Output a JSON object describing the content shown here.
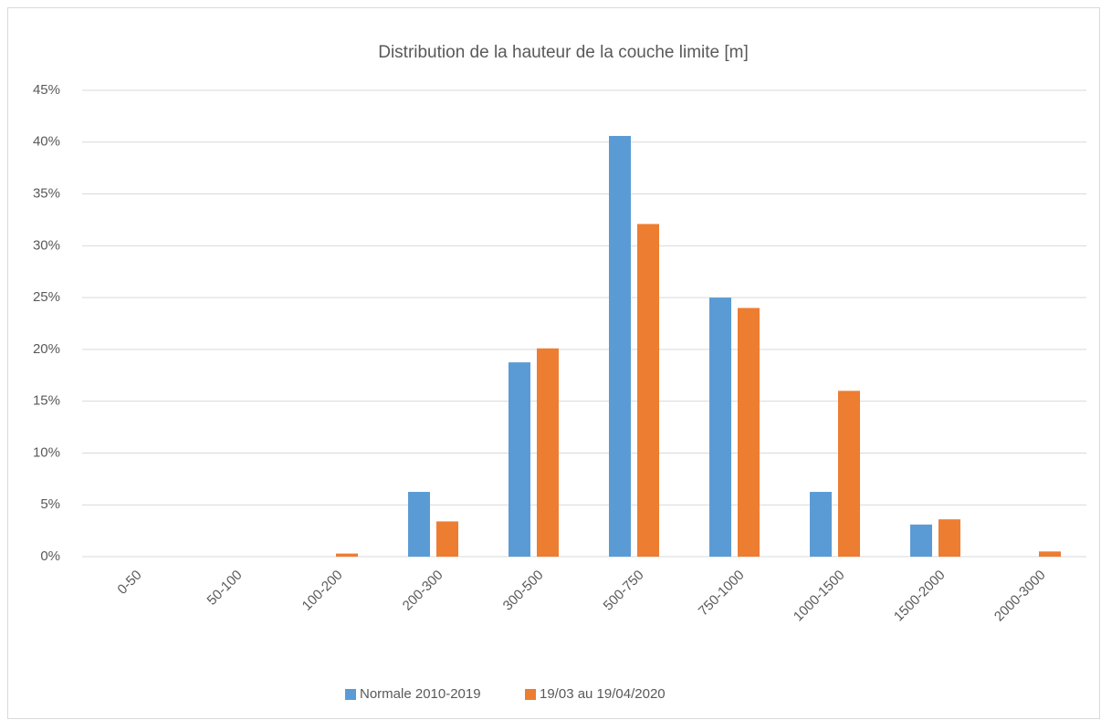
{
  "chart_data": {
    "type": "bar",
    "title": "Distribution de la hauteur de la couche limite [m]",
    "categories": [
      "0-50",
      "50-100",
      "100-200",
      "200-300",
      "300-500",
      "500-750",
      "750-1000",
      "1000-1500",
      "1500-2000",
      "2000-3000"
    ],
    "series": [
      {
        "name": "Normale 2010-2019",
        "color": "#5b9bd5",
        "values": [
          0,
          0,
          0,
          6.25,
          18.75,
          40.6,
          25.0,
          6.25,
          3.1,
          0
        ]
      },
      {
        "name": "19/03 au 19/04/2020",
        "color": "#ed7d31",
        "values": [
          0,
          0,
          0.3,
          3.4,
          20.1,
          32.1,
          24.0,
          16.0,
          3.6,
          0.5
        ]
      }
    ],
    "ylim": [
      0,
      45
    ],
    "yticks": [
      {
        "value": 0,
        "label": "0%"
      },
      {
        "value": 5,
        "label": "5%"
      },
      {
        "value": 10,
        "label": "10%"
      },
      {
        "value": 15,
        "label": "15%"
      },
      {
        "value": 20,
        "label": "20%"
      },
      {
        "value": 25,
        "label": "25%"
      },
      {
        "value": 30,
        "label": "30%"
      },
      {
        "value": 35,
        "label": "35%"
      },
      {
        "value": 40,
        "label": "40%"
      },
      {
        "value": 45,
        "label": "45%"
      }
    ],
    "grid": true,
    "legend": "bottom"
  }
}
